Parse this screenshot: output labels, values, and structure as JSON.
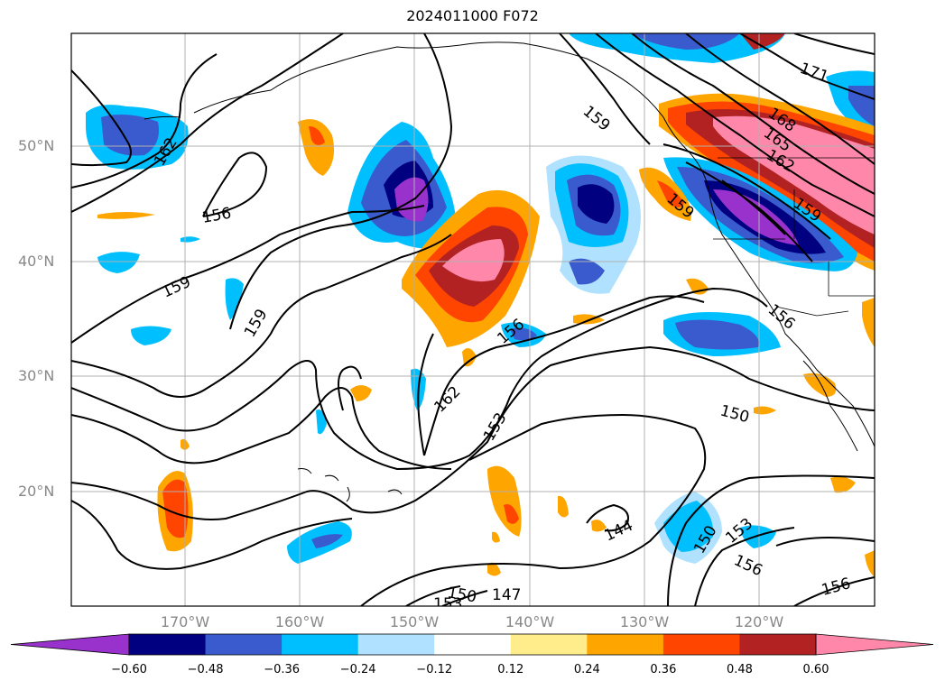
{
  "title": "2024011000 F072",
  "lat_labels": [
    "50°N",
    "40°N",
    "30°N",
    "20°N"
  ],
  "lon_labels": [
    "170°W",
    "160°W",
    "150°W",
    "140°W",
    "130°W",
    "120°W"
  ],
  "colorbar": {
    "colors": [
      "#9932cc",
      "#000080",
      "#3a5bcd",
      "#00bfff",
      "#b0e2ff",
      "#ffffff",
      "#ffec8b",
      "#ffa500",
      "#ff4500",
      "#b22222",
      "#ff88aa"
    ],
    "ticks": [
      "−0.60",
      "−0.48",
      "−0.36",
      "−0.24",
      "−0.12",
      "0.12",
      "0.24",
      "0.36",
      "0.48",
      "0.60"
    ]
  },
  "contour_labels": [
    "171",
    "168",
    "165",
    "162",
    "159",
    "159",
    "156",
    "162",
    "156",
    "159",
    "159",
    "159",
    "162",
    "153",
    "150",
    "156",
    "144",
    "150",
    "153",
    "156",
    "156",
    "150",
    "147",
    "153"
  ]
}
